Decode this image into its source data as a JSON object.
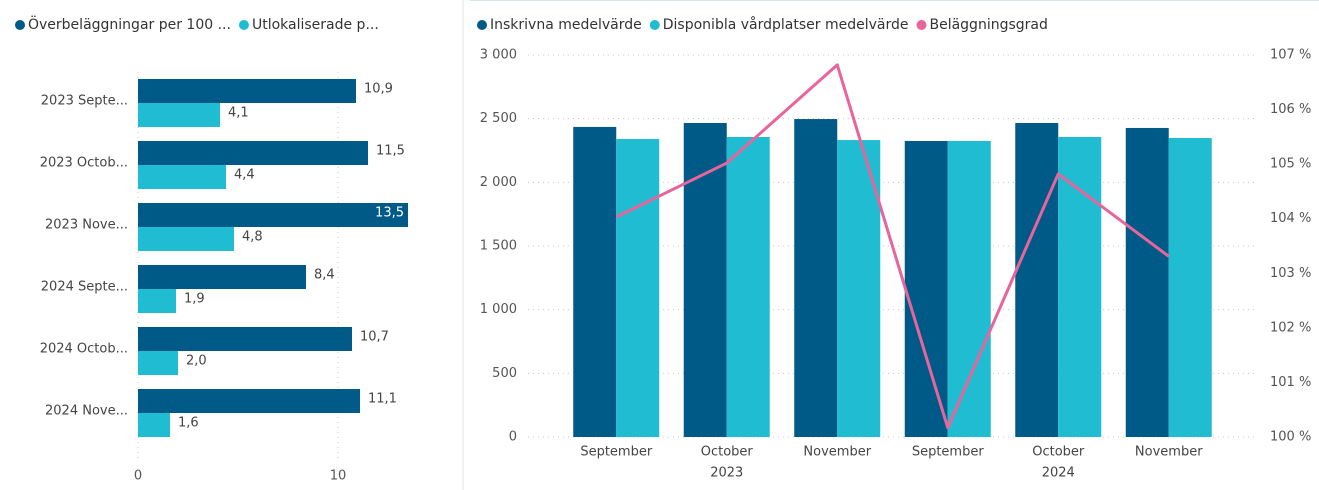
{
  "chart_data": [
    {
      "type": "hbar",
      "categories": [
        "2023 Septe...",
        "2023 Octob...",
        "2023 Nove...",
        "2024 Septe...",
        "2024 Octob...",
        "2024 Nove..."
      ],
      "series": [
        {
          "name": "Överbeläggningar per 100 ...",
          "color": "#005a87",
          "values": [
            10.9,
            11.5,
            13.5,
            8.4,
            10.7,
            11.1
          ],
          "value_labels": [
            "10,9",
            "11,5",
            "13,5",
            "8,4",
            "10,7",
            "11,1"
          ]
        },
        {
          "name": "Utlokaliserade p...",
          "color": "#1fbcd2",
          "values": [
            4.1,
            4.4,
            4.8,
            1.9,
            2.0,
            1.6
          ],
          "value_labels": [
            "4,1",
            "4,4",
            "4,8",
            "1,9",
            "2,0",
            "1,6"
          ]
        }
      ],
      "xlim": [
        0,
        15
      ],
      "xticks": [
        0,
        10
      ],
      "grid": true
    },
    {
      "type": "combo",
      "categories": [
        "September",
        "October",
        "November",
        "September",
        "October",
        "November"
      ],
      "groups": [
        "2023",
        "2024"
      ],
      "series": [
        {
          "name": "Inskrivna medelvärde",
          "color": "#005a87",
          "kind": "bar",
          "values": [
            2435,
            2466,
            2497,
            2325,
            2466,
            2427
          ]
        },
        {
          "name": "Disponibla vårdplatser medelvärde",
          "color": "#1fbcd2",
          "kind": "bar",
          "values": [
            2340,
            2356,
            2332,
            2325,
            2356,
            2348
          ]
        },
        {
          "name": "Beläggningsgrad",
          "color": "#e8659c",
          "kind": "line",
          "axis": "y2",
          "values": [
            104.03,
            105.02,
            106.82,
            100.17,
            104.82,
            103.31
          ]
        }
      ],
      "ylim": [
        0,
        3000
      ],
      "yticks": [
        0,
        500,
        {
          "value": 1000,
          "label": "1 000"
        },
        {
          "value": 1500,
          "label": "1 500"
        },
        {
          "value": 2000,
          "label": "2 000"
        },
        {
          "value": 2500,
          "label": "2 500"
        },
        {
          "value": 3000,
          "label": "3 000"
        }
      ],
      "y2lim": [
        100,
        107
      ],
      "y2ticks": [
        {
          "value": 100,
          "label": "100 %"
        },
        {
          "value": 101,
          "label": "101 %"
        },
        {
          "value": 102,
          "label": "102 %"
        },
        {
          "value": 103,
          "label": "103 %"
        },
        {
          "value": 104,
          "label": "104 %"
        },
        {
          "value": 105,
          "label": "105 %"
        },
        {
          "value": 106,
          "label": "106 %"
        },
        {
          "value": 107,
          "label": "107 %"
        }
      ],
      "grid": true
    }
  ]
}
